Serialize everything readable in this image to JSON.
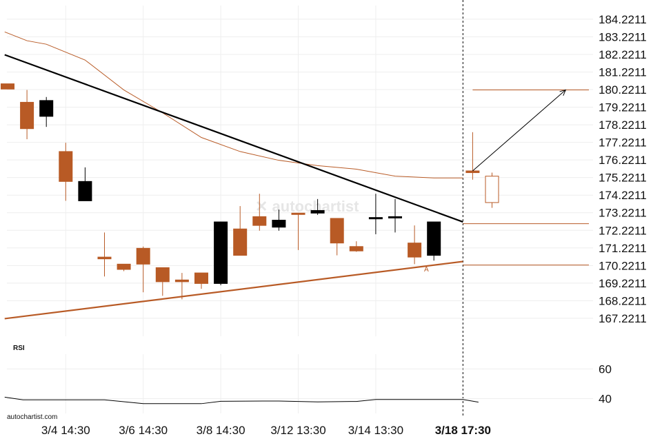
{
  "colors": {
    "bullish": "#000000",
    "bearish": "#b85a25",
    "trend_upper": "#000000",
    "trend_lower": "#b85a25",
    "moving_average": "#b85a25",
    "rsi_line": "#000000",
    "grid": "#eeeeee",
    "projection": "#000000",
    "level_lines": "#b85a25"
  },
  "chart_data": {
    "type": "candlestick",
    "watermark": "autochartist.com",
    "price_axis": {
      "range": [
        166.2,
        185.0
      ],
      "ticks": [
        "184.2211",
        "183.2211",
        "182.2211",
        "181.2211",
        "180.2211",
        "179.2211",
        "178.2211",
        "177.2211",
        "176.2211",
        "175.2211",
        "174.2211",
        "173.2211",
        "172.2211",
        "171.2211",
        "170.2211",
        "169.2211",
        "168.2211",
        "167.2211"
      ]
    },
    "x_axis": {
      "tick_labels": [
        {
          "label": "3/4 14:30",
          "index": 3,
          "bold": false
        },
        {
          "label": "3/6 14:30",
          "index": 7,
          "bold": false
        },
        {
          "label": "3/8 14:30",
          "index": 11,
          "bold": false
        },
        {
          "label": "3/12 13:30",
          "index": 15,
          "bold": false
        },
        {
          "label": "3/14 13:30",
          "index": 19,
          "bold": false
        },
        {
          "label": "3/18 17:30",
          "index": 23.5,
          "bold": true
        }
      ],
      "current_time_index": 23.5
    },
    "candles": [
      {
        "i": 0,
        "o": 180.55,
        "h": 180.55,
        "l": 180.25,
        "c": 180.25
      },
      {
        "i": 1,
        "o": 179.5,
        "h": 180.2,
        "l": 177.4,
        "c": 178.0
      },
      {
        "i": 2,
        "o": 178.7,
        "h": 179.8,
        "l": 178.1,
        "c": 179.6
      },
      {
        "i": 3,
        "o": 176.7,
        "h": 177.2,
        "l": 173.9,
        "c": 175.0
      },
      {
        "i": 4,
        "o": 173.9,
        "h": 175.8,
        "l": 173.9,
        "c": 175.0
      },
      {
        "i": 5,
        "o": 170.7,
        "h": 172.1,
        "l": 169.6,
        "c": 170.6
      },
      {
        "i": 6,
        "o": 170.3,
        "h": 170.3,
        "l": 169.9,
        "c": 170.0
      },
      {
        "i": 7,
        "o": 171.2,
        "h": 171.3,
        "l": 168.7,
        "c": 170.3
      },
      {
        "i": 8,
        "o": 170.1,
        "h": 170.1,
        "l": 168.5,
        "c": 169.3
      },
      {
        "i": 9,
        "o": 169.4,
        "h": 169.8,
        "l": 168.3,
        "c": 169.3
      },
      {
        "i": 10,
        "o": 169.8,
        "h": 169.8,
        "l": 168.9,
        "c": 169.2
      },
      {
        "i": 11,
        "o": 169.2,
        "h": 172.7,
        "l": 169.1,
        "c": 172.7
      },
      {
        "i": 12,
        "o": 172.3,
        "h": 173.6,
        "l": 170.8,
        "c": 170.8
      },
      {
        "i": 13,
        "o": 173.0,
        "h": 174.3,
        "l": 172.2,
        "c": 172.5
      },
      {
        "i": 14,
        "o": 172.4,
        "h": 173.4,
        "l": 172.2,
        "c": 172.8
      },
      {
        "i": 15,
        "o": 173.2,
        "h": 173.2,
        "l": 171.1,
        "c": 173.15
      },
      {
        "i": 16,
        "o": 173.2,
        "h": 174.0,
        "l": 173.1,
        "c": 173.35
      },
      {
        "i": 17,
        "o": 172.9,
        "h": 172.9,
        "l": 170.8,
        "c": 171.5
      },
      {
        "i": 18,
        "o": 171.3,
        "h": 171.6,
        "l": 171.0,
        "c": 171.05
      },
      {
        "i": 19,
        "o": 172.95,
        "h": 174.3,
        "l": 172.0,
        "c": 172.95
      },
      {
        "i": 20,
        "o": 173.0,
        "h": 174.0,
        "l": 172.1,
        "c": 173.0
      },
      {
        "i": 21,
        "o": 171.5,
        "h": 172.5,
        "l": 170.3,
        "c": 170.7
      },
      {
        "i": 22,
        "o": 170.8,
        "h": 172.7,
        "l": 170.5,
        "c": 172.7
      },
      {
        "i": 24,
        "o": 175.6,
        "h": 177.8,
        "l": 175.1,
        "c": 175.5
      },
      {
        "i": 25,
        "o": 175.3,
        "h": 175.5,
        "l": 173.5,
        "c": 173.8,
        "hollow": true
      }
    ],
    "trendlines": [
      {
        "name": "resistance",
        "from": [
          -0.15,
          182.2
        ],
        "to": [
          23.5,
          172.7
        ]
      },
      {
        "name": "support",
        "from": [
          -0.15,
          167.2
        ],
        "to": [
          23.5,
          170.45
        ]
      }
    ],
    "moving_average": [
      [
        -0.15,
        183.5
      ],
      [
        1,
        183.0
      ],
      [
        2,
        182.8
      ],
      [
        4,
        181.9
      ],
      [
        6,
        180.2
      ],
      [
        8,
        178.9
      ],
      [
        10,
        177.5
      ],
      [
        12,
        176.7
      ],
      [
        14,
        176.2
      ],
      [
        16,
        175.9
      ],
      [
        18,
        175.7
      ],
      [
        20,
        175.3
      ],
      [
        22,
        175.2
      ],
      [
        23.5,
        175.2
      ]
    ],
    "levels": [
      {
        "value": 180.2,
        "from": 24.0,
        "to": 30
      },
      {
        "value": 172.6,
        "from": 23.5,
        "to": 30
      },
      {
        "value": 170.25,
        "from": 23.5,
        "to": 30
      }
    ],
    "projection": {
      "from": [
        24.0,
        175.6
      ],
      "to": [
        28.8,
        180.2
      ]
    },
    "annotation": {
      "text": "A",
      "index": 21.6,
      "price": 170.2
    },
    "rsi": {
      "title": "RSI",
      "range": [
        30,
        70
      ],
      "ticks": [
        "60",
        "40"
      ],
      "values": [
        [
          -0.15,
          41
        ],
        [
          0.8,
          39.2
        ],
        [
          5,
          39.2
        ],
        [
          7,
          36.6
        ],
        [
          10,
          36.6
        ],
        [
          11,
          38.2
        ],
        [
          14,
          38.4
        ],
        [
          16,
          37.8
        ],
        [
          18,
          38.1
        ],
        [
          19,
          39.4
        ],
        [
          23.5,
          39.4
        ],
        [
          24.3,
          37.6
        ]
      ]
    }
  }
}
